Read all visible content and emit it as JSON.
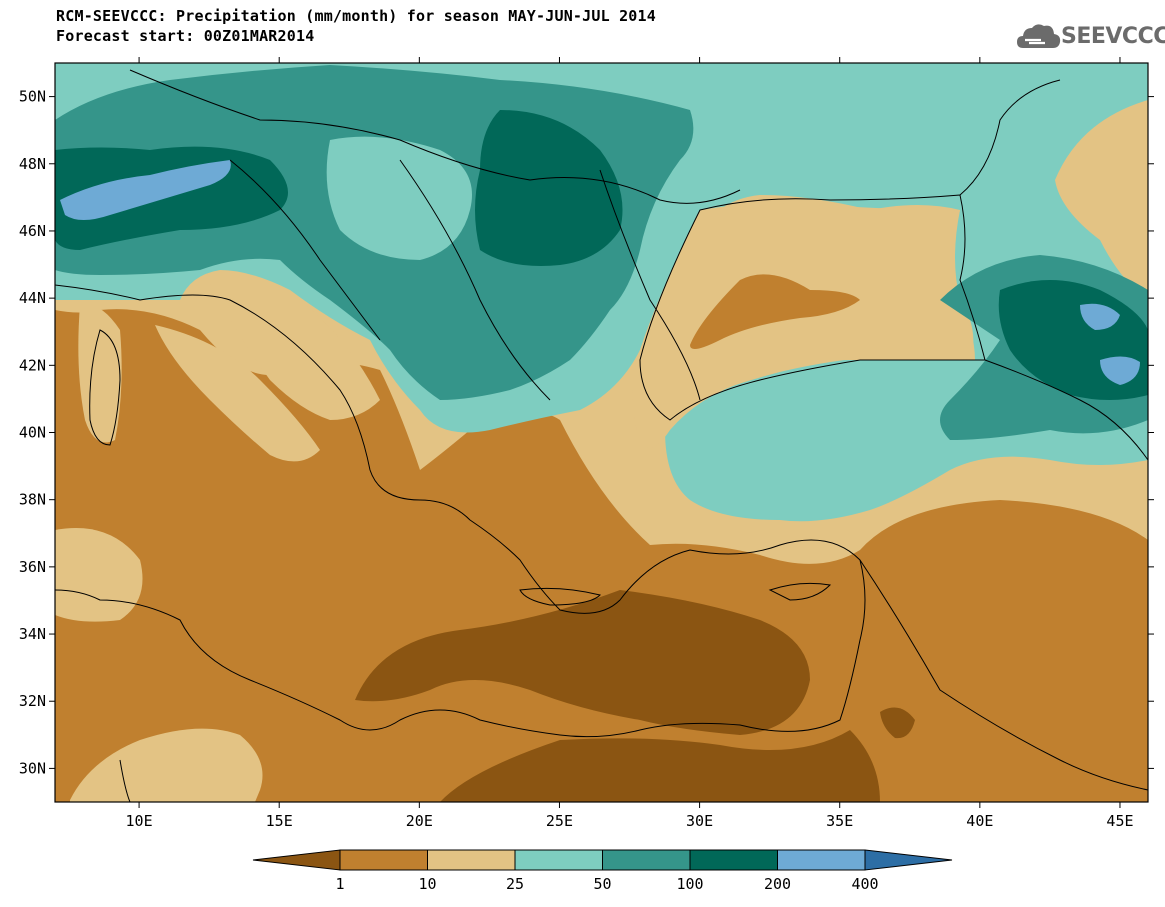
{
  "header": {
    "title_line1": "RCM-SEEVCCC: Precipitation (mm/month) for season MAY-JUN-JUL 2014",
    "title_line2": "Forecast start: 00Z01MAR2014"
  },
  "logo": {
    "text": "SEEVCCC",
    "icon": "cloud-logo-icon"
  },
  "map": {
    "lat_labels": [
      "50N",
      "48N",
      "46N",
      "44N",
      "42N",
      "40N",
      "38N",
      "36N",
      "34N",
      "32N",
      "30N"
    ],
    "lon_labels": [
      "10E",
      "15E",
      "20E",
      "25E",
      "30E",
      "35E",
      "40E",
      "45E"
    ],
    "lat_range": [
      29,
      51
    ],
    "lon_range": [
      7,
      46
    ]
  },
  "legend": {
    "colors": [
      "#8b5512",
      "#c0802f",
      "#e3c384",
      "#7ecdc0",
      "#35958a",
      "#016858",
      "#6eaad5",
      "#2d6ea5"
    ],
    "labels": [
      "1",
      "10",
      "25",
      "50",
      "100",
      "200",
      "400"
    ]
  }
}
